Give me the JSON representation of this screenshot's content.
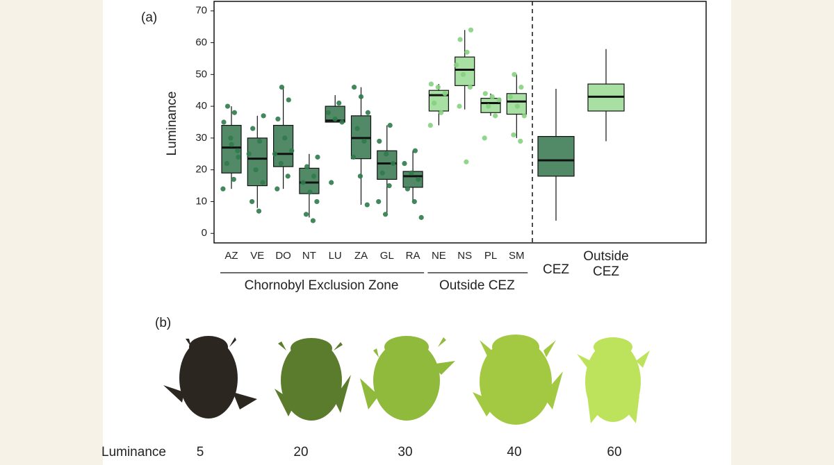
{
  "chart_data": {
    "type": "box",
    "panel_label": "(a)",
    "y_label": "Luminance",
    "ylim": [
      -3,
      73
    ],
    "yticks": [
      0,
      10,
      20,
      30,
      40,
      50,
      60,
      70
    ],
    "series": [
      {
        "name": "Chornobyl Exclusion Zone",
        "color": "#3f7d57",
        "point_color": "#2f7a4a",
        "categories": [
          "AZ",
          "VE",
          "DO",
          "NT",
          "LU",
          "ZA",
          "GL",
          "RA"
        ],
        "whisker_low": [
          14,
          8,
          14,
          5,
          35,
          9,
          6.5,
          10
        ],
        "q1": [
          19,
          15,
          21,
          12.5,
          35,
          23.5,
          17,
          14.5
        ],
        "median": [
          27,
          23.5,
          25,
          16,
          35.5,
          30,
          22,
          18
        ],
        "q3": [
          34,
          30,
          34,
          20.5,
          40,
          37,
          26,
          19.5
        ],
        "whisker_high": [
          40,
          37,
          46,
          25,
          43.5,
          46,
          34,
          26
        ],
        "points": [
          [
            14,
            17,
            22,
            26,
            30,
            35,
            38,
            40,
            24,
            28
          ],
          [
            7,
            10,
            16,
            20,
            25,
            29,
            33,
            37
          ],
          [
            14,
            18,
            22,
            26,
            30,
            36,
            42,
            46,
            25
          ],
          [
            4,
            6,
            10,
            13,
            16,
            18,
            21,
            24
          ],
          [
            16,
            35,
            36,
            38,
            41
          ],
          [
            9,
            18,
            24,
            29,
            33,
            38,
            43,
            46
          ],
          [
            6,
            10,
            15,
            19,
            22,
            25,
            29,
            34
          ],
          [
            5,
            10,
            14,
            17,
            19,
            22,
            26
          ]
        ]
      },
      {
        "name": "Outside CEZ",
        "color": "#9fdb98",
        "point_color": "#86d07f",
        "categories": [
          "NE",
          "NS",
          "PL",
          "SM"
        ],
        "whisker_low": [
          34,
          39,
          37,
          30
        ],
        "q1": [
          38.5,
          46.5,
          38,
          37.5
        ],
        "median": [
          43.5,
          51.5,
          41,
          41.5
        ],
        "q3": [
          45,
          55.5,
          42.5,
          44
        ],
        "whisker_high": [
          47,
          64,
          44,
          50
        ],
        "points": [
          [
            34,
            38,
            41,
            44,
            46,
            47
          ],
          [
            22.5,
            40,
            46,
            50,
            53,
            57,
            61,
            64
          ],
          [
            30,
            37,
            40,
            42,
            43,
            44
          ],
          [
            29,
            31,
            37,
            40,
            43,
            46,
            50
          ]
        ]
      }
    ],
    "summary": {
      "categories": [
        "CEZ",
        "Outside CEZ"
      ],
      "colors": [
        "#3f7d57",
        "#9fdb98"
      ],
      "whisker_low": [
        4,
        29
      ],
      "q1": [
        18,
        38.5
      ],
      "median": [
        23,
        43
      ],
      "q3": [
        30.5,
        47
      ],
      "whisker_high": [
        45.5,
        58
      ]
    }
  },
  "panel_b": {
    "label": "(b)",
    "row_label": "Luminance",
    "values": [
      5,
      20,
      30,
      40,
      60
    ]
  }
}
